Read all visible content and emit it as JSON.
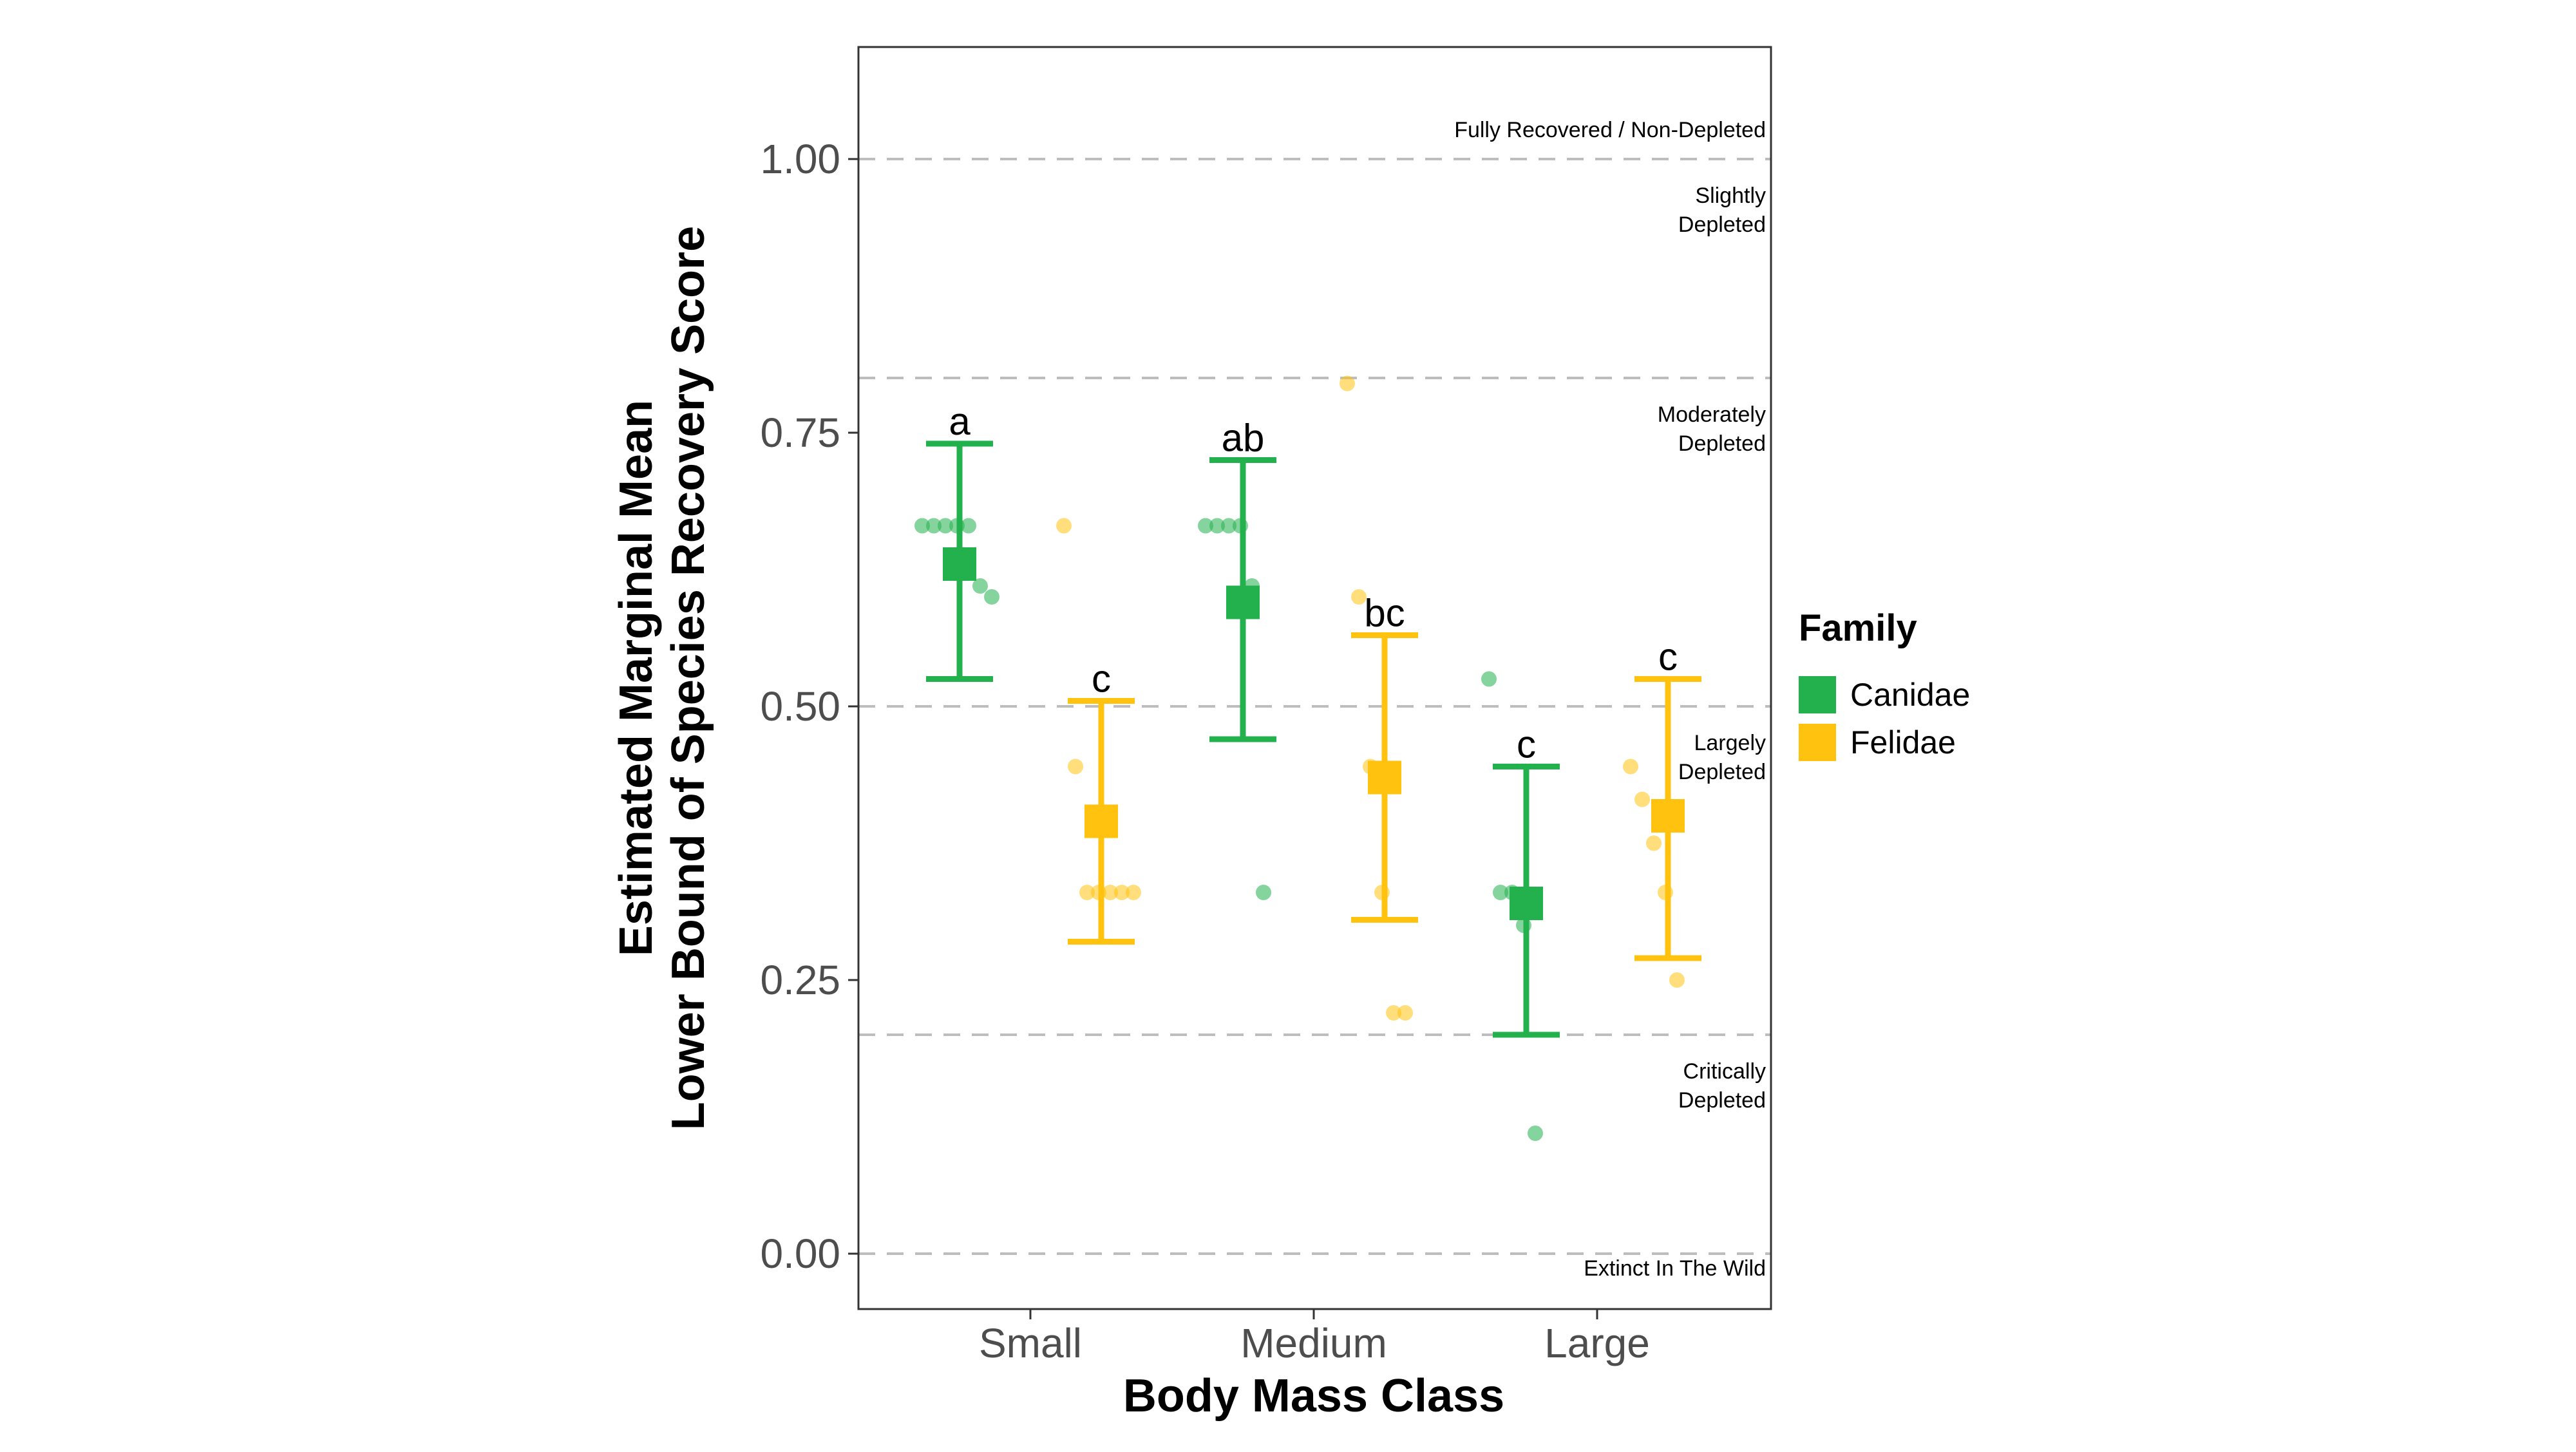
{
  "colors": {
    "Canidae": "#22b14c",
    "Felidae": "#ffc20e",
    "axis_text": "#4d4d4d",
    "grid_dash": "#bdbdbd",
    "panel_border": "#333333"
  },
  "chart_data": {
    "type": "scatter",
    "title": "",
    "xlabel": "Body Mass Class",
    "ylabel_lines": [
      "Estimated Marginal Mean",
      "Lower Bound of Species Recovery Score"
    ],
    "categories": [
      "Small",
      "Medium",
      "Large"
    ],
    "ylim": [
      -0.05,
      1.1
    ],
    "yticks": [
      {
        "value": 0.0,
        "label": "0.00"
      },
      {
        "value": 0.25,
        "label": "0.25"
      },
      {
        "value": 0.5,
        "label": "0.50"
      },
      {
        "value": 0.75,
        "label": "0.75"
      },
      {
        "value": 1.0,
        "label": "1.00"
      }
    ],
    "grid": false,
    "legend": {
      "title": "Family",
      "placement": "right",
      "items": [
        "Canidae",
        "Felidae"
      ]
    },
    "reference_lines": [
      0.0,
      0.2,
      0.5,
      0.8,
      1.0
    ],
    "annotations": [
      {
        "lines": [
          "Fully Recovered / Non-Depleted"
        ],
        "y": 1.02
      },
      {
        "lines": [
          "Slightly",
          "Depleted"
        ],
        "y": 0.96
      },
      {
        "lines": [
          "Moderately",
          "Depleted"
        ],
        "y": 0.76
      },
      {
        "lines": [
          "Largely",
          "Depleted"
        ],
        "y": 0.46
      },
      {
        "lines": [
          "Critically",
          "Depleted"
        ],
        "y": 0.16
      },
      {
        "lines": [
          "Extinct In The Wild"
        ],
        "y": -0.02
      }
    ],
    "series": [
      {
        "name": "Canidae",
        "emm": [
          0.63,
          0.595,
          0.32
        ],
        "lower": [
          0.525,
          0.47,
          0.2
        ],
        "upper": [
          0.74,
          0.725,
          0.445
        ],
        "letters": [
          "a",
          "ab",
          "c"
        ],
        "points": [
          [
            0.665,
            0.665,
            0.665,
            0.665,
            0.665,
            0.61,
            0.6
          ],
          [
            0.665,
            0.665,
            0.665,
            0.665,
            0.61,
            0.33
          ],
          [
            0.525,
            0.33,
            0.33,
            0.3,
            0.11
          ]
        ]
      },
      {
        "name": "Felidae",
        "emm": [
          0.395,
          0.435,
          0.4
        ],
        "lower": [
          0.285,
          0.305,
          0.27
        ],
        "upper": [
          0.505,
          0.565,
          0.525
        ],
        "letters": [
          "c",
          "bc",
          "c"
        ],
        "points": [
          [
            0.665,
            0.445,
            0.33,
            0.33,
            0.33,
            0.33,
            0.33
          ],
          [
            0.795,
            0.6,
            0.445,
            0.33,
            0.22,
            0.22
          ],
          [
            0.445,
            0.415,
            0.375,
            0.33,
            0.25
          ]
        ]
      }
    ]
  }
}
